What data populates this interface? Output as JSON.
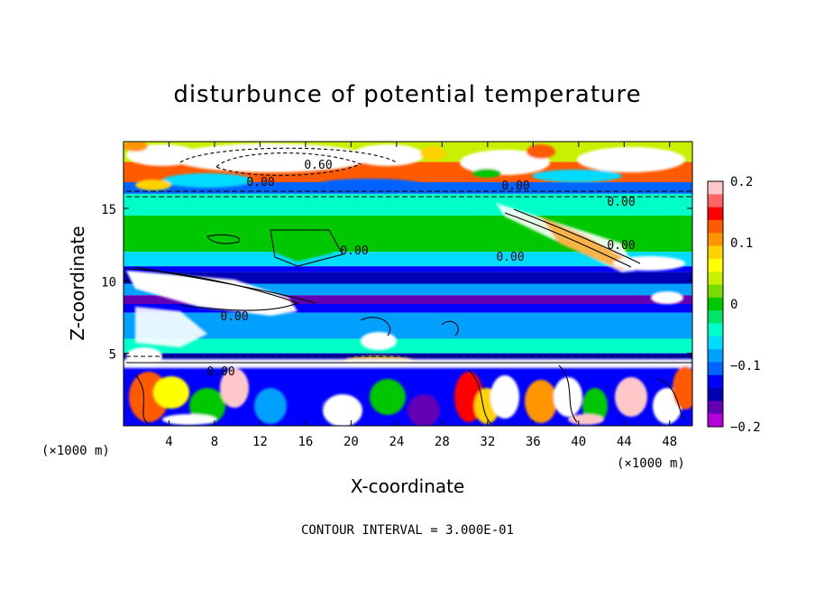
{
  "chart_data": {
    "type": "heatmap",
    "title": "disturbunce of potential temperature",
    "xlabel": "X-coordinate",
    "ylabel": "Z-coordinate",
    "x_unit": "(×1000 m)",
    "xlim": [
      0,
      50
    ],
    "ylim": [
      0,
      19.6
    ],
    "x_ticks": [
      4,
      8,
      12,
      16,
      20,
      24,
      28,
      32,
      36,
      40,
      44,
      48
    ],
    "y_ticks": [
      5,
      10,
      15
    ],
    "colorbar": {
      "range": [
        -0.2,
        0.2
      ],
      "ticks": [
        0.2,
        0.1,
        0,
        -0.1,
        -0.2
      ],
      "tick_labels": [
        "0.2",
        "0.1",
        "0",
        "−0.1",
        "−0.2"
      ],
      "colors": [
        "#ffc8c8",
        "#ff6464",
        "#ff0000",
        "#ff5a00",
        "#ff9600",
        "#ffd200",
        "#ffff00",
        "#c8f000",
        "#78dc00",
        "#00c800",
        "#00e664",
        "#00ffc8",
        "#00dcff",
        "#00a0ff",
        "#0064ff",
        "#0000ff",
        "#0000b4",
        "#6400b4",
        "#b400dc"
      ]
    },
    "contour_labels": [
      "0.60",
      "0.00",
      "0.00",
      "0.00",
      "0.00",
      "0.00",
      "0.00",
      "0.00",
      "0.00"
    ],
    "contour_interval_text": "CONTOUR INTERVAL = 3.000E-01",
    "bands": [
      {
        "z": [
          18.2,
          19.6
        ],
        "value": 0.05
      },
      {
        "z": [
          16.8,
          18.2
        ],
        "value": 0.12
      },
      {
        "z": [
          16.0,
          16.8
        ],
        "value": -0.1
      },
      {
        "z": [
          14.5,
          16.0
        ],
        "value": -0.05
      },
      {
        "z": [
          12.0,
          14.5
        ],
        "value": 0.0
      },
      {
        "z": [
          11.0,
          12.0
        ],
        "value": -0.06
      },
      {
        "z": [
          10.6,
          11.0
        ],
        "value": -0.12
      },
      {
        "z": [
          9.8,
          10.6
        ],
        "value": -0.15
      },
      {
        "z": [
          9.0,
          9.8
        ],
        "value": -0.08
      },
      {
        "z": [
          8.4,
          9.0
        ],
        "value": -0.16
      },
      {
        "z": [
          7.8,
          8.4
        ],
        "value": -0.12
      },
      {
        "z": [
          6.0,
          7.8
        ],
        "value": -0.09
      },
      {
        "z": [
          5.0,
          6.0
        ],
        "value": -0.05
      },
      {
        "z": [
          4.4,
          5.0
        ],
        "value": -0.15
      },
      {
        "z": [
          0,
          4.4
        ],
        "value": -0.13
      }
    ]
  }
}
